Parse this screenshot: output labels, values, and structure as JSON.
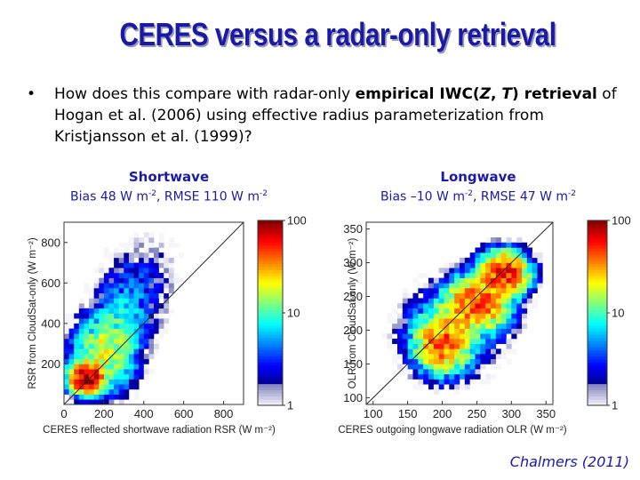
{
  "slide": {
    "title": "CERES versus a radar-only retrieval",
    "bullet_symbol": "•",
    "bullet_parts": [
      {
        "text": "How does this compare with radar-only ",
        "style": "normal"
      },
      {
        "text": "empirical IWC(",
        "style": "bold"
      },
      {
        "text": "Z",
        "style": "bolditalic"
      },
      {
        "text": ", ",
        "style": "bold"
      },
      {
        "text": "T",
        "style": "bolditalic"
      },
      {
        "text": ") retrieval",
        "style": "bold"
      },
      {
        "text": " of Hogan et al. (2006) using effective radius parameterization from Kristjansson et al. (1999)?",
        "style": "normal"
      }
    ],
    "citation": "Chalmers (2011)"
  },
  "chart_data": [
    {
      "type": "heatmap",
      "panel_title": "Shortwave",
      "stats": {
        "bias_prefix": "Bias 48 W m",
        "bias_exp": "-2",
        "rmse_prefix": ", RMSE 110 W m",
        "rmse_exp": "-2"
      },
      "xlabel": "CERES reflected shortwave radiation RSR (W m⁻²)",
      "ylabel": "RSR from CloudSat-only (W m⁻²)",
      "xlim": [
        0,
        900
      ],
      "ylim": [
        0,
        900
      ],
      "xticks": [
        0,
        200,
        400,
        600,
        800
      ],
      "yticks": [
        200,
        400,
        600,
        800
      ],
      "one_to_one_line": true,
      "colorbar": {
        "scale": "log",
        "min": 1,
        "max": 100,
        "ticks": [
          1,
          10,
          100
        ]
      },
      "density_blobs": [
        {
          "x": 110,
          "y": 130,
          "sx": 45,
          "sy": 40,
          "peak": 100
        },
        {
          "x": 200,
          "y": 250,
          "sx": 90,
          "sy": 110,
          "peak": 18
        },
        {
          "x": 300,
          "y": 450,
          "sx": 90,
          "sy": 140,
          "peak": 5
        },
        {
          "x": 420,
          "y": 620,
          "sx": 110,
          "sy": 150,
          "peak": 2
        }
      ]
    },
    {
      "type": "heatmap",
      "panel_title": "Longwave",
      "stats": {
        "bias_prefix": "Bias –10 W m",
        "bias_exp": "-2",
        "rmse_prefix": ", RMSE 47 W m",
        "rmse_exp": "-2"
      },
      "xlabel": "CERES outgoing longwave radiation OLR (W m⁻²)",
      "ylabel": "OLR from CloudSat-only (W m⁻²)",
      "xlim": [
        90,
        360
      ],
      "ylim": [
        90,
        360
      ],
      "xticks": [
        100,
        150,
        200,
        250,
        300,
        350
      ],
      "yticks": [
        100,
        150,
        200,
        250,
        300,
        350
      ],
      "one_to_one_line": true,
      "colorbar": {
        "scale": "log",
        "min": 1,
        "max": 100,
        "ticks": [
          1,
          10,
          100
        ]
      },
      "density_blobs": [
        {
          "x": 200,
          "y": 180,
          "sx": 22,
          "sy": 24,
          "peak": 40
        },
        {
          "x": 250,
          "y": 240,
          "sx": 26,
          "sy": 22,
          "peak": 45
        },
        {
          "x": 290,
          "y": 285,
          "sx": 20,
          "sy": 18,
          "peak": 60
        },
        {
          "x": 215,
          "y": 200,
          "sx": 45,
          "sy": 40,
          "peak": 6
        }
      ]
    }
  ]
}
